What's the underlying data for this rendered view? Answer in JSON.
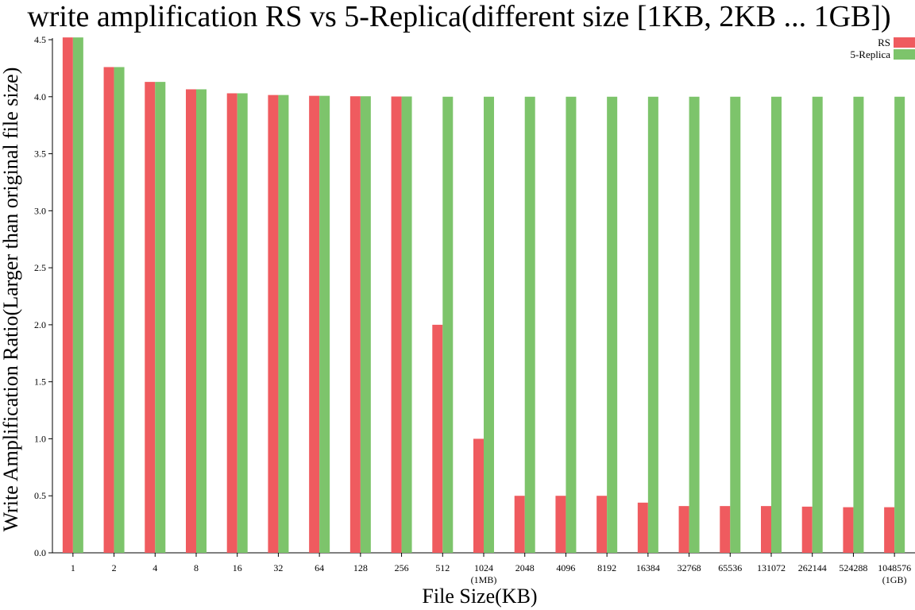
{
  "chart_data": {
    "type": "bar",
    "title": "write amplification RS vs 5-Replica(different size [1KB, 2KB ... 1GB])",
    "xlabel": "File Size(KB)",
    "ylabel": "Write Amplification Ratio(Larger than original file size)",
    "ylim": [
      0,
      4.5
    ],
    "yticks": [
      "0.0",
      "0.5",
      "1.0",
      "1.5",
      "2.0",
      "2.5",
      "3.0",
      "3.5",
      "4.0",
      "4.5"
    ],
    "grid": false,
    "legend_position": "top-right",
    "categories": [
      {
        "label": "1",
        "sub": ""
      },
      {
        "label": "2",
        "sub": ""
      },
      {
        "label": "4",
        "sub": ""
      },
      {
        "label": "8",
        "sub": ""
      },
      {
        "label": "16",
        "sub": ""
      },
      {
        "label": "32",
        "sub": ""
      },
      {
        "label": "64",
        "sub": ""
      },
      {
        "label": "128",
        "sub": ""
      },
      {
        "label": "256",
        "sub": ""
      },
      {
        "label": "512",
        "sub": ""
      },
      {
        "label": "1024",
        "sub": "(1MB)"
      },
      {
        "label": "2048",
        "sub": ""
      },
      {
        "label": "4096",
        "sub": ""
      },
      {
        "label": "8192",
        "sub": ""
      },
      {
        "label": "16384",
        "sub": ""
      },
      {
        "label": "32768",
        "sub": ""
      },
      {
        "label": "65536",
        "sub": ""
      },
      {
        "label": "131072",
        "sub": ""
      },
      {
        "label": "262144",
        "sub": ""
      },
      {
        "label": "524288",
        "sub": ""
      },
      {
        "label": "1048576",
        "sub": "(1GB)"
      }
    ],
    "series": [
      {
        "name": "RS",
        "color": "#ef5b5f",
        "values": [
          4.52,
          4.26,
          4.13,
          4.065,
          4.03,
          4.015,
          4.008,
          4.004,
          4.002,
          2.0,
          1.0,
          0.5,
          0.5,
          0.5,
          0.44,
          0.41,
          0.41,
          0.41,
          0.405,
          0.4,
          0.4
        ]
      },
      {
        "name": "5-Replica",
        "color": "#7dc46b",
        "values": [
          4.52,
          4.26,
          4.13,
          4.065,
          4.03,
          4.015,
          4.008,
          4.004,
          4.002,
          4.0,
          4.0,
          4.0,
          4.0,
          4.0,
          4.0,
          4.0,
          4.0,
          4.0,
          4.0,
          4.0,
          4.0
        ]
      }
    ]
  }
}
